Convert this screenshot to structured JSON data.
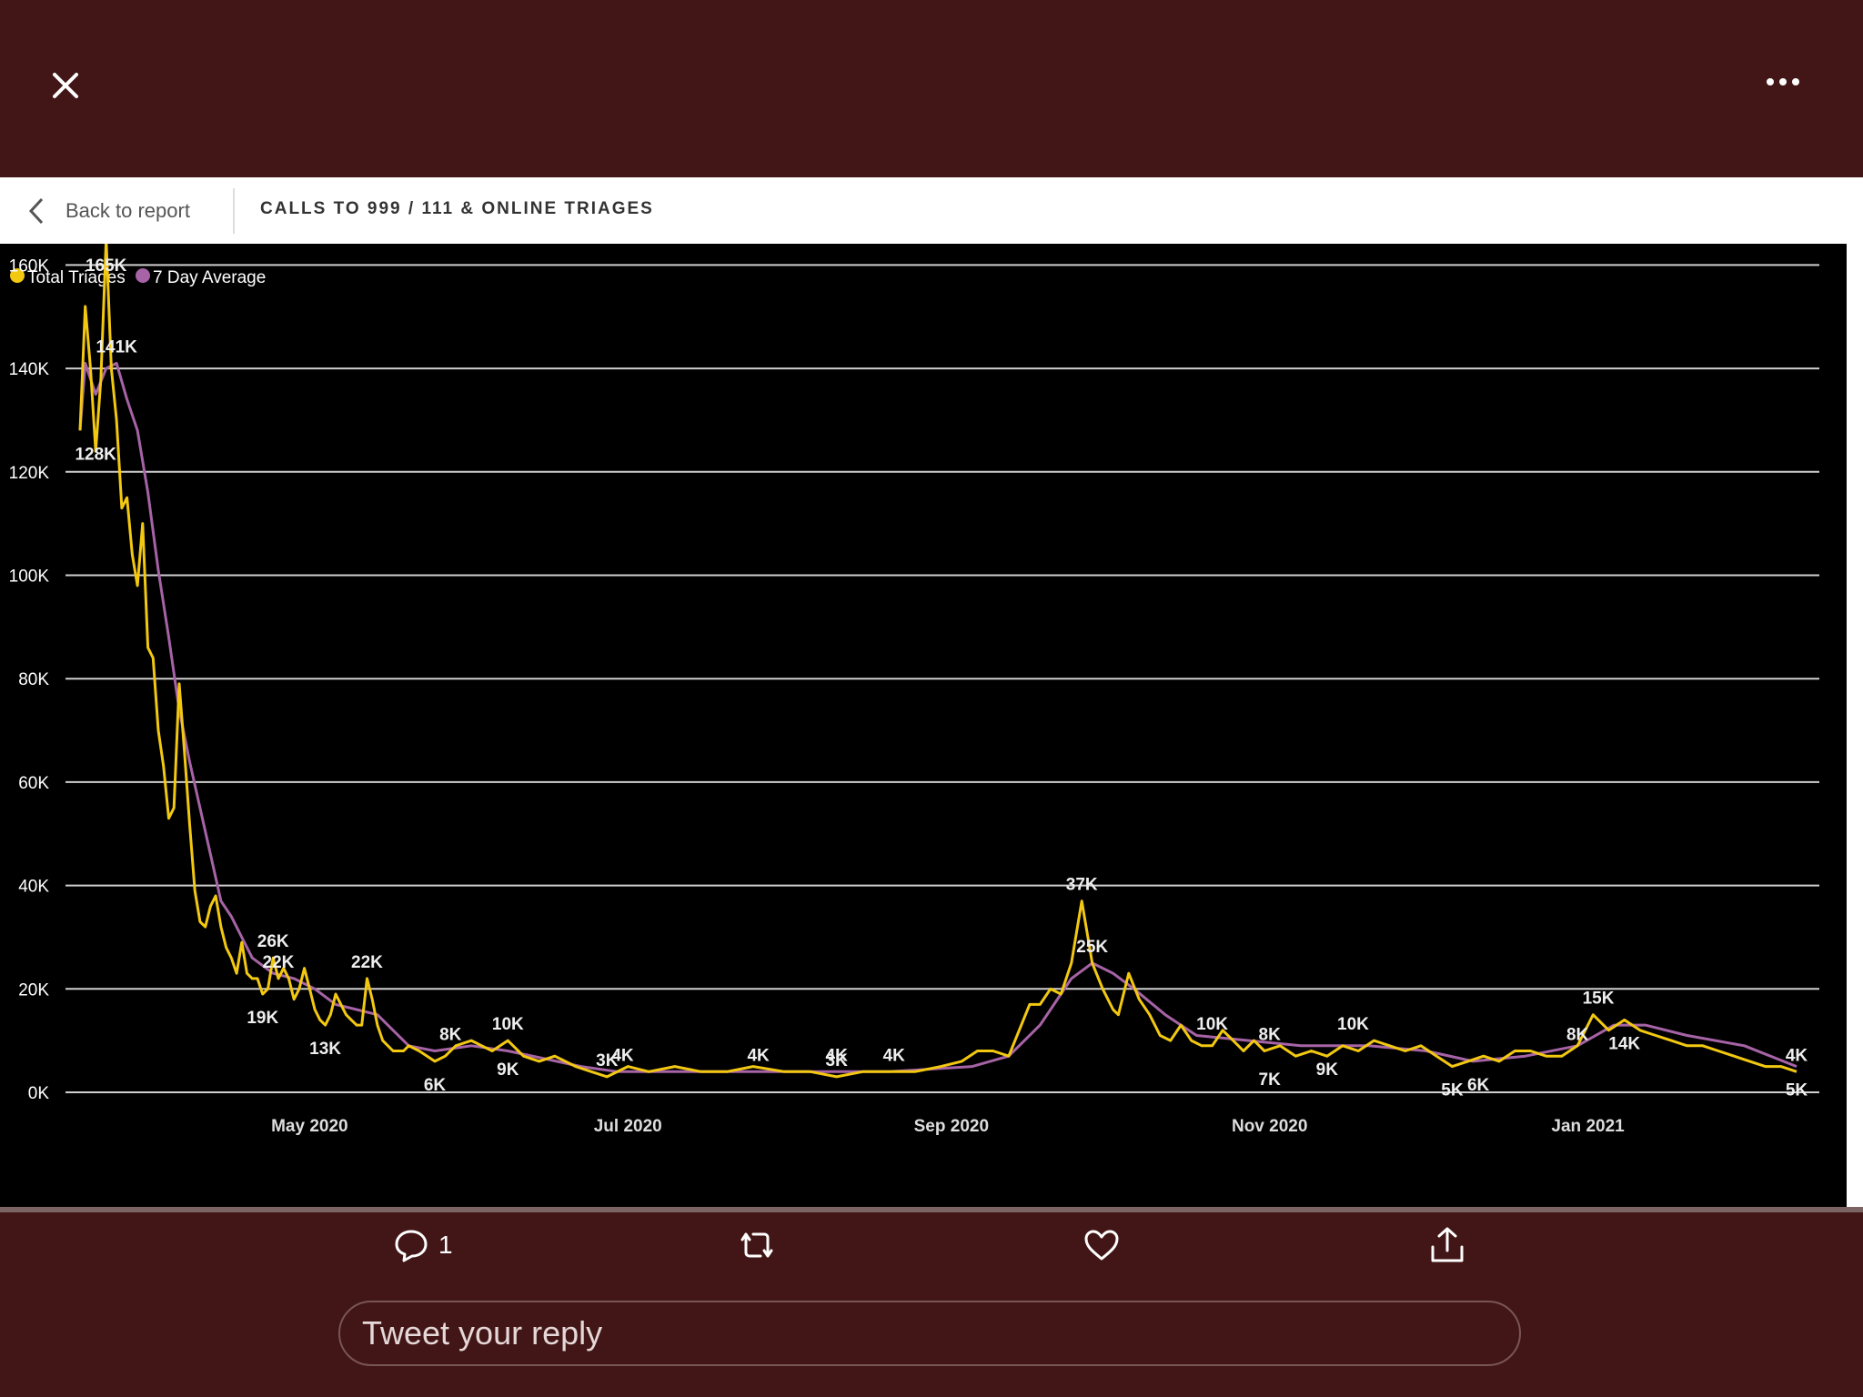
{
  "icons": {
    "close": "close-icon",
    "more": "more-icon",
    "back": "chevron-left-icon",
    "reply": "comment-icon",
    "retweet": "retweet-icon",
    "like": "heart-icon",
    "share": "share-icon"
  },
  "colors": {
    "page_bg": "#421616",
    "chart_bg": "#000000",
    "series_total": "#F2C811",
    "series_avg": "#A663A6"
  },
  "report": {
    "back_label": "Back to report",
    "title": "CALLS TO 999 / 111 & ONLINE TRIAGES"
  },
  "actions": {
    "reply_count": "1"
  },
  "reply": {
    "placeholder": "Tweet your reply"
  },
  "chart_data": {
    "type": "line",
    "ylim": [
      0,
      165000
    ],
    "yticks": [
      "0K",
      "20K",
      "40K",
      "60K",
      "80K",
      "100K",
      "120K",
      "140K",
      "160K"
    ],
    "xticks": [
      {
        "label": "May 2020",
        "date": "2020-05-01"
      },
      {
        "label": "Jul 2020",
        "date": "2020-07-01"
      },
      {
        "label": "Sep 2020",
        "date": "2020-09-01"
      },
      {
        "label": "Nov 2020",
        "date": "2020-11-01"
      },
      {
        "label": "Jan 2021",
        "date": "2021-01-01"
      }
    ],
    "grid": true,
    "legend_position": "top-left",
    "series": [
      {
        "name": "Total Triages",
        "color": "#F2C811",
        "points": [
          [
            "2020-03-18",
            128000
          ],
          [
            "2020-03-19",
            152000
          ],
          [
            "2020-03-20",
            140000
          ],
          [
            "2020-03-21",
            124000
          ],
          [
            "2020-03-22",
            138000
          ],
          [
            "2020-03-23",
            165000
          ],
          [
            "2020-03-24",
            140000
          ],
          [
            "2020-03-25",
            130000
          ],
          [
            "2020-03-26",
            113000
          ],
          [
            "2020-03-27",
            115000
          ],
          [
            "2020-03-28",
            104000
          ],
          [
            "2020-03-29",
            98000
          ],
          [
            "2020-03-30",
            110000
          ],
          [
            "2020-03-31",
            86000
          ],
          [
            "2020-04-01",
            84000
          ],
          [
            "2020-04-02",
            70000
          ],
          [
            "2020-04-03",
            63000
          ],
          [
            "2020-04-04",
            53000
          ],
          [
            "2020-04-05",
            55000
          ],
          [
            "2020-04-06",
            79000
          ],
          [
            "2020-04-07",
            66000
          ],
          [
            "2020-04-08",
            52000
          ],
          [
            "2020-04-09",
            39000
          ],
          [
            "2020-04-10",
            33000
          ],
          [
            "2020-04-11",
            32000
          ],
          [
            "2020-04-12",
            36000
          ],
          [
            "2020-04-13",
            38000
          ],
          [
            "2020-04-14",
            32000
          ],
          [
            "2020-04-15",
            28000
          ],
          [
            "2020-04-16",
            26000
          ],
          [
            "2020-04-17",
            23000
          ],
          [
            "2020-04-18",
            29000
          ],
          [
            "2020-04-19",
            23000
          ],
          [
            "2020-04-20",
            22000
          ],
          [
            "2020-04-21",
            22000
          ],
          [
            "2020-04-22",
            19000
          ],
          [
            "2020-04-23",
            20000
          ],
          [
            "2020-04-24",
            26000
          ],
          [
            "2020-04-25",
            22000
          ],
          [
            "2020-04-26",
            24000
          ],
          [
            "2020-04-27",
            22000
          ],
          [
            "2020-04-28",
            18000
          ],
          [
            "2020-04-29",
            20000
          ],
          [
            "2020-04-30",
            24000
          ],
          [
            "2020-05-01",
            20000
          ],
          [
            "2020-05-02",
            16000
          ],
          [
            "2020-05-03",
            14000
          ],
          [
            "2020-05-04",
            13000
          ],
          [
            "2020-05-05",
            15000
          ],
          [
            "2020-05-06",
            19000
          ],
          [
            "2020-05-07",
            17000
          ],
          [
            "2020-05-08",
            15000
          ],
          [
            "2020-05-09",
            14000
          ],
          [
            "2020-05-10",
            13000
          ],
          [
            "2020-05-11",
            13000
          ],
          [
            "2020-05-12",
            22000
          ],
          [
            "2020-05-13",
            18000
          ],
          [
            "2020-05-14",
            13000
          ],
          [
            "2020-05-15",
            10000
          ],
          [
            "2020-05-16",
            9000
          ],
          [
            "2020-05-17",
            8000
          ],
          [
            "2020-05-18",
            8000
          ],
          [
            "2020-05-19",
            8000
          ],
          [
            "2020-05-20",
            9000
          ],
          [
            "2020-05-22",
            8000
          ],
          [
            "2020-05-25",
            6000
          ],
          [
            "2020-05-27",
            7000
          ],
          [
            "2020-05-29",
            9000
          ],
          [
            "2020-06-01",
            10000
          ],
          [
            "2020-06-03",
            9000
          ],
          [
            "2020-06-05",
            8000
          ],
          [
            "2020-06-08",
            10000
          ],
          [
            "2020-06-11",
            7000
          ],
          [
            "2020-06-14",
            6000
          ],
          [
            "2020-06-17",
            7000
          ],
          [
            "2020-06-21",
            5000
          ],
          [
            "2020-06-24",
            4000
          ],
          [
            "2020-06-27",
            3000
          ],
          [
            "2020-07-01",
            5000
          ],
          [
            "2020-07-05",
            4000
          ],
          [
            "2020-07-10",
            5000
          ],
          [
            "2020-07-15",
            4000
          ],
          [
            "2020-07-20",
            4000
          ],
          [
            "2020-07-25",
            5000
          ],
          [
            "2020-07-31",
            4000
          ],
          [
            "2020-08-05",
            4000
          ],
          [
            "2020-08-10",
            3000
          ],
          [
            "2020-08-15",
            4000
          ],
          [
            "2020-08-20",
            4000
          ],
          [
            "2020-08-25",
            4000
          ],
          [
            "2020-08-30",
            5000
          ],
          [
            "2020-09-03",
            6000
          ],
          [
            "2020-09-06",
            8000
          ],
          [
            "2020-09-09",
            8000
          ],
          [
            "2020-09-12",
            7000
          ],
          [
            "2020-09-14",
            12000
          ],
          [
            "2020-09-16",
            17000
          ],
          [
            "2020-09-18",
            17000
          ],
          [
            "2020-09-20",
            20000
          ],
          [
            "2020-09-22",
            19000
          ],
          [
            "2020-09-24",
            25000
          ],
          [
            "2020-09-26",
            37000
          ],
          [
            "2020-09-28",
            25000
          ],
          [
            "2020-09-30",
            20000
          ],
          [
            "2020-10-02",
            16000
          ],
          [
            "2020-10-03",
            15000
          ],
          [
            "2020-10-05",
            23000
          ],
          [
            "2020-10-07",
            18000
          ],
          [
            "2020-10-09",
            15000
          ],
          [
            "2020-10-11",
            11000
          ],
          [
            "2020-10-13",
            10000
          ],
          [
            "2020-10-15",
            13000
          ],
          [
            "2020-10-17",
            10000
          ],
          [
            "2020-10-19",
            9000
          ],
          [
            "2020-10-21",
            9000
          ],
          [
            "2020-10-23",
            12000
          ],
          [
            "2020-10-25",
            10000
          ],
          [
            "2020-10-27",
            8000
          ],
          [
            "2020-10-29",
            10000
          ],
          [
            "2020-10-31",
            8000
          ],
          [
            "2020-11-03",
            9000
          ],
          [
            "2020-11-06",
            7000
          ],
          [
            "2020-11-09",
            8000
          ],
          [
            "2020-11-12",
            7000
          ],
          [
            "2020-11-15",
            9000
          ],
          [
            "2020-11-18",
            8000
          ],
          [
            "2020-11-21",
            10000
          ],
          [
            "2020-11-24",
            9000
          ],
          [
            "2020-11-27",
            8000
          ],
          [
            "2020-11-30",
            9000
          ],
          [
            "2020-12-03",
            7000
          ],
          [
            "2020-12-06",
            5000
          ],
          [
            "2020-12-09",
            6000
          ],
          [
            "2020-12-12",
            7000
          ],
          [
            "2020-12-15",
            6000
          ],
          [
            "2020-12-18",
            8000
          ],
          [
            "2020-12-21",
            8000
          ],
          [
            "2020-12-24",
            7000
          ],
          [
            "2020-12-27",
            7000
          ],
          [
            "2020-12-30",
            9000
          ],
          [
            "2021-01-02",
            15000
          ],
          [
            "2021-01-05",
            12000
          ],
          [
            "2021-01-08",
            14000
          ],
          [
            "2021-01-11",
            12000
          ],
          [
            "2021-01-14",
            11000
          ],
          [
            "2021-01-17",
            10000
          ],
          [
            "2021-01-20",
            9000
          ],
          [
            "2021-01-23",
            9000
          ],
          [
            "2021-01-26",
            8000
          ],
          [
            "2021-01-29",
            7000
          ],
          [
            "2021-02-01",
            6000
          ],
          [
            "2021-02-04",
            5000
          ],
          [
            "2021-02-07",
            5000
          ],
          [
            "2021-02-10",
            4000
          ]
        ]
      },
      {
        "name": "7 Day Average",
        "color": "#A663A6",
        "points": [
          [
            "2020-03-18",
            128000
          ],
          [
            "2020-03-19",
            141000
          ],
          [
            "2020-03-21",
            135000
          ],
          [
            "2020-03-23",
            140000
          ],
          [
            "2020-03-25",
            141000
          ],
          [
            "2020-03-27",
            134000
          ],
          [
            "2020-03-29",
            128000
          ],
          [
            "2020-03-31",
            116000
          ],
          [
            "2020-04-02",
            101000
          ],
          [
            "2020-04-04",
            88000
          ],
          [
            "2020-04-06",
            74000
          ],
          [
            "2020-04-08",
            64000
          ],
          [
            "2020-04-10",
            55000
          ],
          [
            "2020-04-12",
            46000
          ],
          [
            "2020-04-14",
            37000
          ],
          [
            "2020-04-16",
            34000
          ],
          [
            "2020-04-18",
            30000
          ],
          [
            "2020-04-20",
            26000
          ],
          [
            "2020-04-24",
            23000
          ],
          [
            "2020-04-28",
            22000
          ],
          [
            "2020-05-02",
            20000
          ],
          [
            "2020-05-06",
            17000
          ],
          [
            "2020-05-10",
            16000
          ],
          [
            "2020-05-14",
            15000
          ],
          [
            "2020-05-17",
            12000
          ],
          [
            "2020-05-20",
            9000
          ],
          [
            "2020-05-25",
            8000
          ],
          [
            "2020-06-01",
            9000
          ],
          [
            "2020-06-08",
            8000
          ],
          [
            "2020-06-15",
            6500
          ],
          [
            "2020-06-22",
            5000
          ],
          [
            "2020-06-29",
            4000
          ],
          [
            "2020-07-15",
            4000
          ],
          [
            "2020-08-01",
            4000
          ],
          [
            "2020-08-20",
            4000
          ],
          [
            "2020-09-05",
            5000
          ],
          [
            "2020-09-12",
            7000
          ],
          [
            "2020-09-18",
            13000
          ],
          [
            "2020-09-24",
            22000
          ],
          [
            "2020-09-28",
            25000
          ],
          [
            "2020-10-02",
            23000
          ],
          [
            "2020-10-06",
            20000
          ],
          [
            "2020-10-12",
            15000
          ],
          [
            "2020-10-18",
            11000
          ],
          [
            "2020-10-28",
            10000
          ],
          [
            "2020-11-07",
            9000
          ],
          [
            "2020-11-20",
            9000
          ],
          [
            "2020-12-01",
            8000
          ],
          [
            "2020-12-10",
            6000
          ],
          [
            "2020-12-20",
            7000
          ],
          [
            "2020-12-30",
            9000
          ],
          [
            "2021-01-06",
            13000
          ],
          [
            "2021-01-12",
            13000
          ],
          [
            "2021-01-20",
            11000
          ],
          [
            "2021-01-31",
            9000
          ],
          [
            "2021-02-10",
            5000
          ]
        ]
      }
    ],
    "data_labels": [
      {
        "text": "165K",
        "date": "2020-03-23",
        "value": 165000
      },
      {
        "text": "141K",
        "date": "2020-03-25",
        "value": 141000
      },
      {
        "text": "128K",
        "date": "2020-03-21",
        "value": 128000
      },
      {
        "text": "26K",
        "date": "2020-04-24",
        "value": 26000
      },
      {
        "text": "22K",
        "date": "2020-04-25",
        "value": 22000
      },
      {
        "text": "19K",
        "date": "2020-04-22",
        "value": 19000
      },
      {
        "text": "13K",
        "date": "2020-05-04",
        "value": 13000
      },
      {
        "text": "22K",
        "date": "2020-05-12",
        "value": 22000
      },
      {
        "text": "8K",
        "date": "2020-05-28",
        "value": 8000
      },
      {
        "text": "6K",
        "date": "2020-05-25",
        "value": 6000
      },
      {
        "text": "10K",
        "date": "2020-06-08",
        "value": 10000
      },
      {
        "text": "9K",
        "date": "2020-06-08",
        "value": 9000
      },
      {
        "text": "3K",
        "date": "2020-06-27",
        "value": 3000
      },
      {
        "text": "4K",
        "date": "2020-06-30",
        "value": 4000
      },
      {
        "text": "4K",
        "date": "2020-07-26",
        "value": 4000
      },
      {
        "text": "3K",
        "date": "2020-08-10",
        "value": 3000
      },
      {
        "text": "4K",
        "date": "2020-08-10",
        "value": 4000
      },
      {
        "text": "4K",
        "date": "2020-08-21",
        "value": 4000
      },
      {
        "text": "37K",
        "date": "2020-09-26",
        "value": 37000
      },
      {
        "text": "25K",
        "date": "2020-09-28",
        "value": 25000
      },
      {
        "text": "10K",
        "date": "2020-10-21",
        "value": 10000
      },
      {
        "text": "8K",
        "date": "2020-11-01",
        "value": 8000
      },
      {
        "text": "7K",
        "date": "2020-11-01",
        "value": 7000
      },
      {
        "text": "9K",
        "date": "2020-11-12",
        "value": 9000
      },
      {
        "text": "10K",
        "date": "2020-11-17",
        "value": 10000
      },
      {
        "text": "5K",
        "date": "2020-12-06",
        "value": 5000
      },
      {
        "text": "6K",
        "date": "2020-12-11",
        "value": 6000
      },
      {
        "text": "8K",
        "date": "2020-12-30",
        "value": 8000
      },
      {
        "text": "15K",
        "date": "2021-01-03",
        "value": 15000
      },
      {
        "text": "14K",
        "date": "2021-01-08",
        "value": 14000
      },
      {
        "text": "4K",
        "date": "2021-02-10",
        "value": 4000
      },
      {
        "text": "5K",
        "date": "2021-02-10",
        "value": 5000
      }
    ]
  }
}
